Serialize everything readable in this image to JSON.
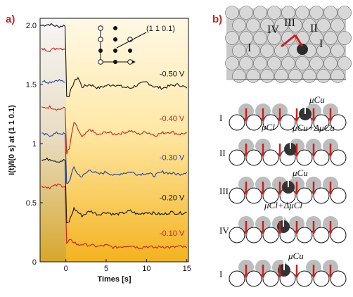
{
  "panels": {
    "a_label": "a)",
    "b_label": "b)"
  },
  "chart_data": {
    "type": "line",
    "xlabel": "Times [s]",
    "ylabel": "I(t)/I(0 s) at (1 1 0.1)",
    "xlim": [
      -3.2,
      15.2
    ],
    "ylim": [
      0,
      2.06
    ],
    "xticks": [
      0,
      5,
      10,
      15
    ],
    "yticks": [
      0,
      0.5,
      1,
      1.5,
      2.0
    ],
    "ytick_labels": [
      "0",
      "0.5",
      "1",
      "1.5",
      "2.0"
    ],
    "inset_label": "(1 1 0.1)",
    "series": [
      {
        "name": "-0.50 V",
        "color": "#111111",
        "pre": 2.0,
        "after": 1.47,
        "dip": 1.4,
        "x": [
          -3,
          -2,
          -1,
          -0.1,
          0.1,
          0.4,
          1,
          1.5,
          2,
          3,
          4,
          5,
          6,
          7,
          8,
          9,
          10,
          11,
          12,
          13,
          14,
          15
        ],
        "y": [
          2.0,
          2.01,
          1.99,
          2.0,
          1.4,
          1.41,
          1.52,
          1.56,
          1.48,
          1.5,
          1.47,
          1.49,
          1.5,
          1.48,
          1.47,
          1.5,
          1.52,
          1.48,
          1.47,
          1.49,
          1.5,
          1.47
        ]
      },
      {
        "name": "",
        "color": "#cc1f1f",
        "pre": 1.8,
        "after": 1.47,
        "dip": 1.4,
        "x": [
          -3,
          -2,
          -1,
          -0.1
        ],
        "y": [
          1.8,
          1.79,
          1.81,
          1.8
        ]
      },
      {
        "name": "",
        "color": "#1f3fb0",
        "pre": 1.53,
        "after": 1.47,
        "dip": 1.4,
        "x": [
          -3,
          -2,
          -1,
          -0.1
        ],
        "y": [
          1.53,
          1.52,
          1.54,
          1.52
        ]
      },
      {
        "name": "-0.40 V",
        "color": "#cc1f1f",
        "pre": 1.3,
        "after": 1.09,
        "x": [
          -3,
          -2,
          -1,
          -0.1,
          0.1,
          0.4,
          1,
          1.5,
          2,
          3,
          4,
          5,
          6,
          7,
          8,
          9,
          10,
          11,
          12,
          13,
          14,
          15
        ],
        "y": [
          1.3,
          1.31,
          1.29,
          1.3,
          0.92,
          0.95,
          1.18,
          1.12,
          1.05,
          1.12,
          1.07,
          1.1,
          1.08,
          1.09,
          1.11,
          1.08,
          1.1,
          1.07,
          1.09,
          1.1,
          1.08,
          1.09
        ]
      },
      {
        "name": "-0.30 V",
        "color": "#1f3fb0",
        "pre": 1.08,
        "after": 0.75,
        "x": [
          -3,
          -2,
          -1,
          -0.1,
          0.1,
          0.4,
          1,
          1.5,
          2,
          3,
          4,
          5,
          6,
          7,
          8,
          9,
          10,
          11,
          12,
          13,
          14,
          15
        ],
        "y": [
          1.08,
          1.07,
          1.09,
          1.08,
          0.66,
          0.68,
          0.8,
          0.74,
          0.72,
          0.78,
          0.74,
          0.76,
          0.73,
          0.75,
          0.76,
          0.74,
          0.75,
          0.73,
          0.76,
          0.75,
          0.74,
          0.76
        ]
      },
      {
        "name": "-0.20 V",
        "color": "#111111",
        "pre": 0.86,
        "after": 0.41,
        "x": [
          -3,
          -2,
          -1,
          -0.1,
          0.1,
          0.4,
          1,
          1.5,
          2,
          3,
          4,
          5,
          6,
          7,
          8,
          9,
          10,
          11,
          12,
          13,
          14,
          15
        ],
        "y": [
          0.86,
          0.87,
          0.85,
          0.86,
          0.32,
          0.34,
          0.45,
          0.42,
          0.39,
          0.43,
          0.4,
          0.42,
          0.4,
          0.41,
          0.43,
          0.4,
          0.42,
          0.41,
          0.4,
          0.42,
          0.41,
          0.42
        ]
      },
      {
        "name": "-0.10 V",
        "color": "#cc1f1f",
        "pre": 0.64,
        "after": 0.13,
        "x": [
          -3,
          -2,
          -1,
          -0.1,
          0.1,
          0.4,
          1,
          1.5,
          2,
          3,
          4,
          5,
          6,
          7,
          8,
          9,
          10,
          11,
          12,
          13,
          14,
          15
        ],
        "y": [
          0.64,
          0.63,
          0.65,
          0.64,
          0.15,
          0.18,
          0.17,
          0.14,
          0.15,
          0.14,
          0.13,
          0.14,
          0.12,
          0.13,
          0.14,
          0.12,
          0.13,
          0.12,
          0.13,
          0.12,
          0.13,
          0.12
        ]
      }
    ]
  },
  "schematic": {
    "top_labels": [
      "IV",
      "III",
      "II",
      "I",
      "I"
    ],
    "rows": [
      {
        "roman": "I",
        "annotations": [
          "μCu",
          "μCl"
        ]
      },
      {
        "roman": "II",
        "annotations": [
          "μCu+ΔμCu"
        ]
      },
      {
        "roman": "III",
        "annotations": [
          "μCu",
          "μCl+ΔμCl"
        ]
      },
      {
        "roman": "IV",
        "annotations": []
      },
      {
        "roman": "I",
        "annotations": [
          "μCu"
        ]
      }
    ],
    "colors": {
      "red": "#cc1f1f",
      "gray": "#bdbdbd",
      "dark": "#333333"
    }
  }
}
